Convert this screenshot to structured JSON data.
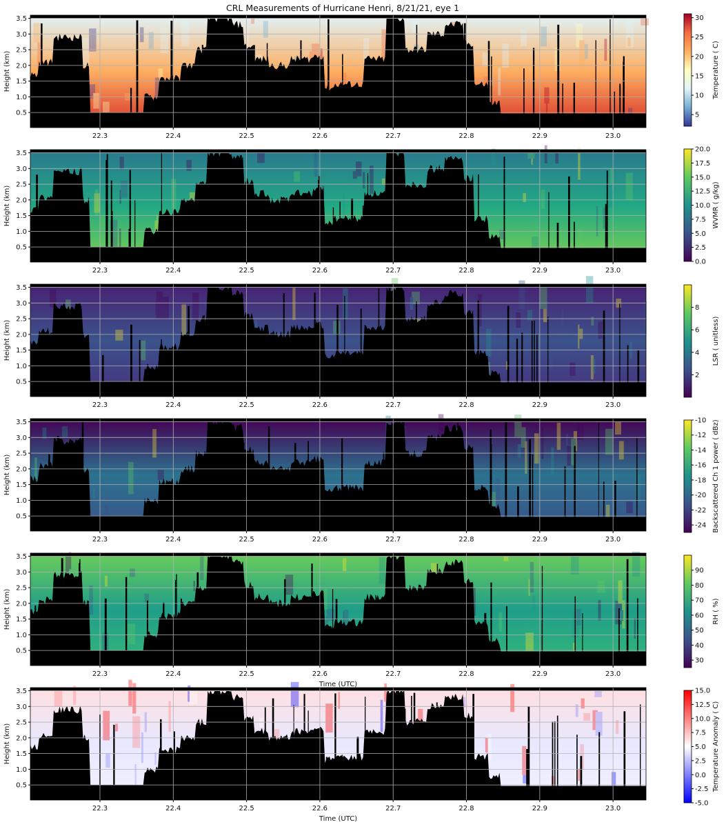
{
  "title": "CRL Measurements of Hurricane Henri, 8/21/21, eye 1",
  "chart_data": [
    {
      "type": "heatmap",
      "field": "temperature",
      "ylabel": "Height (km)",
      "xlabel": "",
      "xlim": [
        22.205,
        23.045
      ],
      "ylim": [
        0.02,
        3.6
      ],
      "x_ticks": [
        "22.3",
        "22.4",
        "22.5",
        "22.6",
        "22.7",
        "22.8",
        "22.9",
        "23.0"
      ],
      "y_ticks": [
        "0.5",
        "1.0",
        "1.5",
        "2.0",
        "2.5",
        "3.0",
        "3.5"
      ],
      "grid": true,
      "colorbar": {
        "label": "Temperature ( C)",
        "cmap": "RdYlBu_r",
        "range": [
          2,
          31
        ],
        "ticks": [
          "5",
          "10",
          "15",
          "20",
          "25",
          "30"
        ],
        "colors": [
          "#313695",
          "#74add1",
          "#e0f3f8",
          "#ffffbf",
          "#fdae61",
          "#f46d43",
          "#a50026"
        ]
      },
      "colors": {
        "near_surface": "#d73027",
        "aloft": "#e0f3f8",
        "mid": "#fdae61"
      }
    },
    {
      "type": "heatmap",
      "field": "wvmr",
      "ylabel": "Height (km)",
      "xlabel": "",
      "xlim": [
        22.205,
        23.045
      ],
      "ylim": [
        0.02,
        3.6
      ],
      "x_ticks": [
        "22.3",
        "22.4",
        "22.5",
        "22.6",
        "22.7",
        "22.8",
        "22.9",
        "23.0"
      ],
      "y_ticks": [
        "0.5",
        "1.0",
        "1.5",
        "2.0",
        "2.5",
        "3.0",
        "3.5"
      ],
      "grid": true,
      "colorbar": {
        "label": "WVMR ( g/kg)",
        "cmap": "viridis",
        "range": [
          0,
          20
        ],
        "ticks": [
          "0.0",
          "2.5",
          "5.0",
          "7.5",
          "10.0",
          "12.5",
          "15.0",
          "17.5",
          "20.0"
        ],
        "colors": [
          "#440154",
          "#3b528b",
          "#21918c",
          "#5ec962",
          "#fde725"
        ]
      },
      "colors": {
        "near_surface": "#7ad151",
        "aloft": "#2a788e",
        "mid": "#22a884"
      }
    },
    {
      "type": "heatmap",
      "field": "lsr",
      "ylabel": "Height (km)",
      "xlabel": "",
      "xlim": [
        22.205,
        23.045
      ],
      "ylim": [
        0.02,
        3.6
      ],
      "x_ticks": [
        "22.3",
        "22.4",
        "22.5",
        "22.6",
        "22.7",
        "22.8",
        "22.9",
        "23.0"
      ],
      "y_ticks": [
        "0.5",
        "1.0",
        "1.5",
        "2.0",
        "2.5",
        "3.0",
        "3.5"
      ],
      "grid": true,
      "colorbar": {
        "label": "LSR ( unitless)",
        "cmap": "viridis",
        "range": [
          0,
          10
        ],
        "ticks": [
          "2",
          "4",
          "6",
          "8"
        ],
        "colors": [
          "#440154",
          "#3b528b",
          "#21918c",
          "#5ec962",
          "#fde725"
        ]
      },
      "colors": {
        "near_surface": "#46327e",
        "aloft": "#482173",
        "mid": "#3b528b"
      }
    },
    {
      "type": "heatmap",
      "field": "backscatter",
      "ylabel": "Height (km)",
      "xlabel": "",
      "xlim": [
        22.205,
        23.045
      ],
      "ylim": [
        0.02,
        3.6
      ],
      "x_ticks": [
        "22.3",
        "22.4",
        "22.5",
        "22.6",
        "22.7",
        "22.8",
        "22.9",
        "23.0"
      ],
      "y_ticks": [
        "0.5",
        "1.0",
        "1.5",
        "2.0",
        "2.5",
        "3.0",
        "3.5"
      ],
      "grid": true,
      "colorbar": {
        "label": "Backscattered Ch 1 power ( dBz)",
        "cmap": "viridis",
        "range": [
          -25,
          -10
        ],
        "ticks": [
          "-24",
          "-22",
          "-20",
          "-18",
          "-16",
          "-14",
          "-12",
          "-10"
        ],
        "colors": [
          "#440154",
          "#3b528b",
          "#21918c",
          "#5ec962",
          "#fde725"
        ]
      },
      "colors": {
        "near_surface": "#3b528b",
        "aloft": "#440154",
        "mid": "#2c728e"
      }
    },
    {
      "type": "heatmap",
      "field": "rh",
      "ylabel": "Height (km)",
      "xlabel": "Time (UTC)",
      "xlim": [
        22.205,
        23.045
      ],
      "ylim": [
        0.02,
        3.6
      ],
      "x_ticks": [
        "22.3",
        "22.4",
        "22.5",
        "22.6",
        "22.7",
        "22.8",
        "22.9",
        "23.0"
      ],
      "y_ticks": [
        "0.5",
        "1.0",
        "1.5",
        "2.0",
        "2.5",
        "3.0",
        "3.5"
      ],
      "grid": true,
      "colorbar": {
        "label": "RH ( %)",
        "cmap": "viridis",
        "range": [
          25,
          100
        ],
        "ticks": [
          "30",
          "40",
          "50",
          "60",
          "70",
          "80",
          "90"
        ],
        "colors": [
          "#440154",
          "#3b528b",
          "#21918c",
          "#5ec962",
          "#fde725"
        ]
      },
      "colors": {
        "near_surface": "#35b779",
        "aloft": "#6ccd5a",
        "mid": "#1f9e89"
      }
    },
    {
      "type": "heatmap",
      "field": "temperature_anomaly",
      "ylabel": "Height (km)",
      "xlabel": "Time (UTC)",
      "xlim": [
        22.205,
        23.045
      ],
      "ylim": [
        0.02,
        3.6
      ],
      "x_ticks": [
        "22.3",
        "22.4",
        "22.5",
        "22.6",
        "22.7",
        "22.8",
        "22.9",
        "23.0"
      ],
      "y_ticks": [
        "0.5",
        "1.0",
        "1.5",
        "2.0",
        "2.5",
        "3.0",
        "3.5"
      ],
      "grid": true,
      "colorbar": {
        "label": "Temperature Anomaly ( C)",
        "cmap": "bwr",
        "range": [
          -5,
          15
        ],
        "ticks": [
          "-5.0",
          "-2.5",
          "0.0",
          "2.5",
          "5.0",
          "7.5",
          "10.0",
          "12.5",
          "15.0"
        ],
        "colors": [
          "#0000ff",
          "#8080ff",
          "#ffffff",
          "#ff8080",
          "#ff0000"
        ]
      },
      "colors": {
        "near_surface": "#f2f2ff",
        "aloft": "#ffe0e0",
        "mid": "#e8e8ff"
      }
    }
  ]
}
